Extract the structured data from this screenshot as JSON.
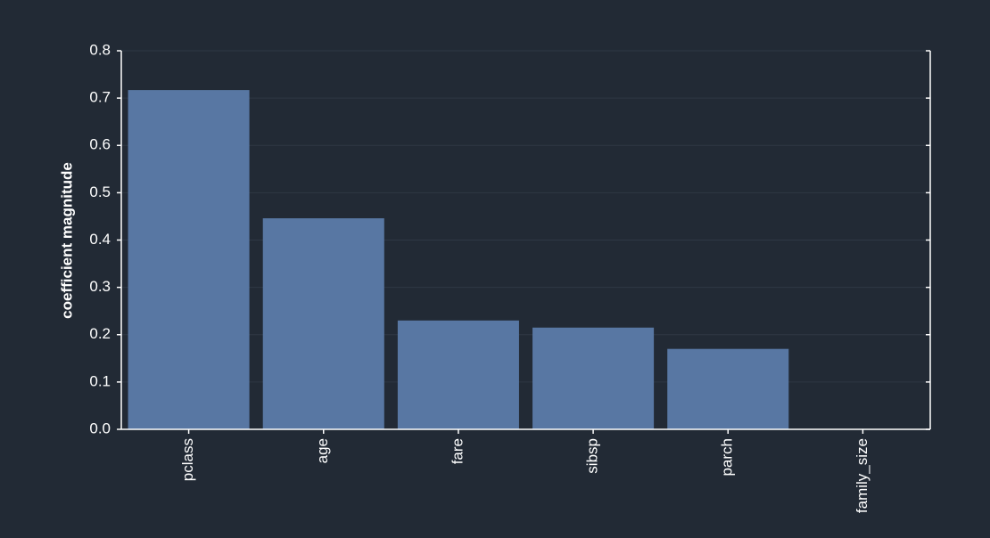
{
  "chart_data": {
    "type": "bar",
    "y_label": "coefficient magnitude",
    "categories": [
      "pclass",
      "age",
      "fare",
      "sibsp",
      "parch",
      "family_size"
    ],
    "values": [
      0.717,
      0.446,
      0.23,
      0.215,
      0.17,
      0
    ],
    "color": "#5877a3",
    "ylim": [
      0,
      0.8
    ],
    "yticks": [
      {
        "value": 0,
        "label": "0.0"
      },
      0.1,
      0.2,
      0.3,
      0.4,
      0.5,
      0.6,
      0.7,
      0.8
    ],
    "grid": true
  }
}
